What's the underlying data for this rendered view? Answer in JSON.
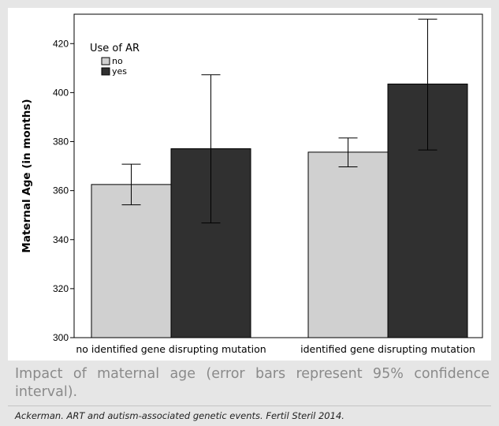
{
  "chart_data": {
    "type": "bar",
    "xlabel": "",
    "ylabel": "Maternal Age (in months)",
    "ylim": [
      300,
      432
    ],
    "yticks": [
      300,
      320,
      340,
      360,
      380,
      400,
      420
    ],
    "categories": [
      "no identified gene disrupting mutation",
      "identified gene disrupting mutation"
    ],
    "legend": {
      "title": "Use of AR",
      "placement": "top-left"
    },
    "grid": false,
    "series": [
      {
        "name": "no",
        "color": "#d0d0d0",
        "values": [
          362.5,
          375.7
        ],
        "err_low": [
          354.2,
          369.7
        ],
        "err_high": [
          370.8,
          381.5
        ]
      },
      {
        "name": "yes",
        "color": "#303030",
        "values": [
          377.1,
          403.5
        ],
        "err_low": [
          346.8,
          376.6
        ],
        "err_high": [
          407.3,
          430.0
        ]
      }
    ]
  },
  "caption": "Impact of maternal age (error bars represent 95% confidence interval).",
  "citation": "Ackerman. ART and autism-associated genetic events. Fertil Steril 2014."
}
